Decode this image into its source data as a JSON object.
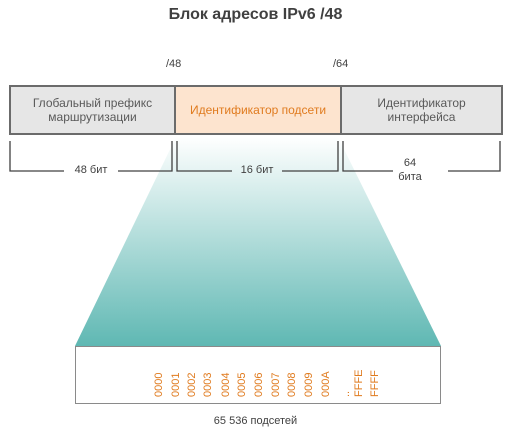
{
  "title": "Блок адресов IPv6 /48",
  "markers": {
    "m48": "/48",
    "m64": "/64"
  },
  "segments": {
    "global": "Глобальный префикс маршрутизации",
    "subnet": "Идентификатор подсети",
    "interface": "Идентификатор интерфейса"
  },
  "bits": {
    "b48": "48 бит",
    "b16": "16 бит",
    "b64_num": "64",
    "b64_unit": "бита"
  },
  "subnet_ids": [
    "0000",
    "0001",
    "0002",
    "0003",
    "0004",
    "0005",
    "0006",
    "0007",
    "0008",
    "0009",
    "000A",
    "..",
    "FFFE",
    "FFFF"
  ],
  "footer": "65 536 подсетей",
  "colors": {
    "accent": "#e07b1f",
    "teal": "#5fb8b3",
    "gray_box": "#e6e6e6",
    "border": "#6b6b6b"
  }
}
